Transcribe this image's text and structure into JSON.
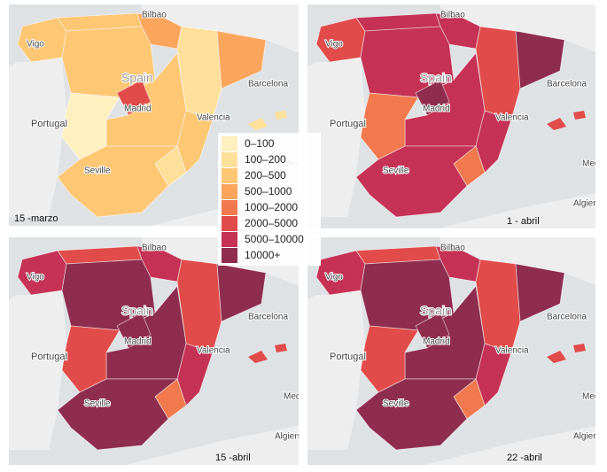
{
  "panels": [
    {
      "date": "15 -marzo"
    },
    {
      "date": "1 - abril"
    },
    {
      "date": "15 -abril"
    },
    {
      "date": "22 -abril"
    }
  ],
  "legend": [
    {
      "label": "0–100",
      "color": "#fff0c0"
    },
    {
      "label": "100–200",
      "color": "#fde09a"
    },
    {
      "label": "200–500",
      "color": "#fdc774"
    },
    {
      "label": "500–1000",
      "color": "#fca55d"
    },
    {
      "label": "1000–2000",
      "color": "#f2794e"
    },
    {
      "label": "2000–5000",
      "color": "#e14c4a"
    },
    {
      "label": "5000–10000",
      "color": "#c53255"
    },
    {
      "label": "10000+",
      "color": "#8f2d4e"
    }
  ],
  "map_labels": [
    "Bilbao",
    "Spain",
    "Madrid",
    "Portugal",
    "Valencia",
    "Barcelona",
    "Seville",
    "Vigo",
    "Algiers",
    "Medite"
  ]
}
